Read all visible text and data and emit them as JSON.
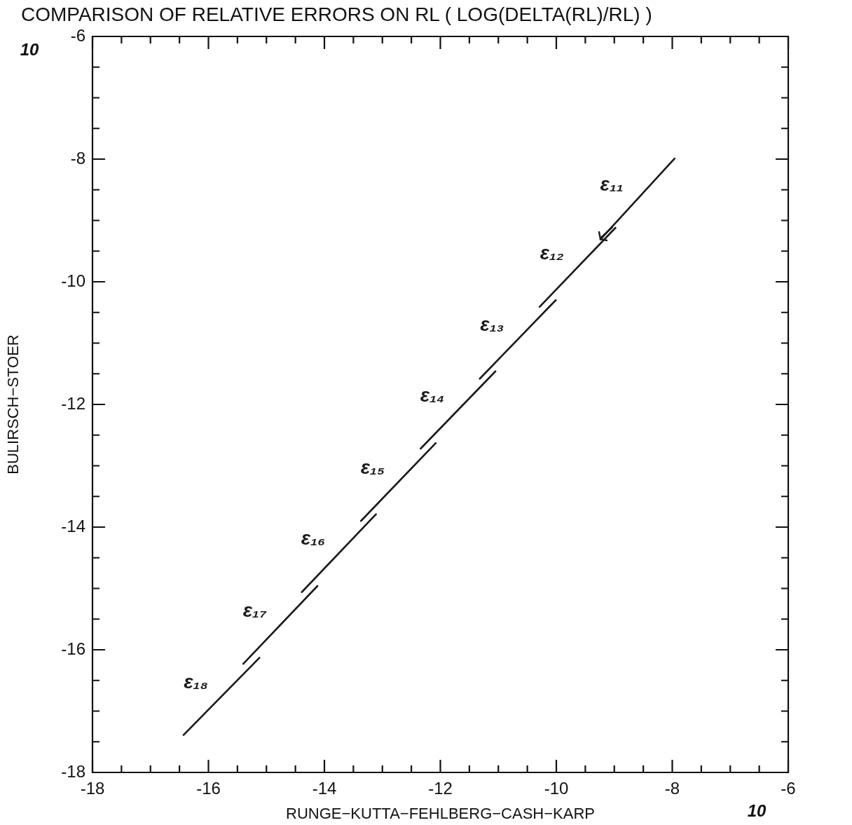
{
  "chart_data": {
    "type": "line",
    "title": "COMPARISON OF RELATIVE ERRORS ON RL ( LOG(DELTA(RL)/RL) )",
    "xlabel": "RUNGE−KUTTA−FEHLBERG−CASH−KARP",
    "ylabel": "BULIRSCH−STOER",
    "xlim": [
      -18,
      -6
    ],
    "ylim": [
      -18,
      -6
    ],
    "xticks": [
      -18,
      {
        "value": -17.5,
        "label": null
      },
      {
        "value": -17,
        "label": null
      },
      {
        "value": -16.5,
        "label": null
      },
      -16,
      {
        "value": -15.5,
        "label": null
      },
      {
        "value": -15,
        "label": null
      },
      {
        "value": -14.5,
        "label": null
      },
      -14,
      {
        "value": -13.5,
        "label": null
      },
      {
        "value": -13,
        "label": null
      },
      {
        "value": -12.5,
        "label": null
      },
      -12,
      {
        "value": -11.5,
        "label": null
      },
      {
        "value": -11,
        "label": null
      },
      {
        "value": -10.5,
        "label": null
      },
      -10,
      {
        "value": -9.5,
        "label": null
      },
      {
        "value": -9,
        "label": null
      },
      {
        "value": -8.5,
        "label": null
      },
      -8,
      {
        "value": -7.5,
        "label": null
      },
      {
        "value": -7,
        "label": null
      },
      {
        "value": -6.5,
        "label": null
      },
      -6
    ],
    "yticks": [
      -18,
      {
        "value": -17.5,
        "label": null
      },
      {
        "value": -17,
        "label": null
      },
      {
        "value": -16.5,
        "label": null
      },
      -16,
      {
        "value": -15.5,
        "label": null
      },
      {
        "value": -15,
        "label": null
      },
      {
        "value": -14.5,
        "label": null
      },
      -14,
      {
        "value": -13.5,
        "label": null
      },
      {
        "value": -13,
        "label": null
      },
      {
        "value": -12.5,
        "label": null
      },
      -12,
      {
        "value": -11.5,
        "label": null
      },
      {
        "value": -11,
        "label": null
      },
      {
        "value": -10.5,
        "label": null
      },
      -10,
      {
        "value": -9.5,
        "label": null
      },
      {
        "value": -9,
        "label": null
      },
      {
        "value": -8.5,
        "label": null
      },
      -8,
      {
        "value": -7.5,
        "label": null
      },
      {
        "value": -7,
        "label": null
      },
      {
        "value": -6.5,
        "label": null
      },
      -6
    ],
    "grid": false,
    "legend": false,
    "marker": "none",
    "line_style": "solid",
    "series": [
      {
        "name": "ε₁₁",
        "color": "#1a1a1a",
        "x": [
          -7.96,
          -9.24
        ],
        "values": [
          -7.99,
          -9.31
        ]
      },
      {
        "name": "ε₁₂",
        "color": "#1a1a1a",
        "x": [
          -8.98,
          -10.29
        ],
        "values": [
          -9.12,
          -10.41
        ]
      },
      {
        "name": "ε₁₃",
        "color": "#1a1a1a",
        "x": [
          -10.01,
          -11.32
        ],
        "values": [
          -10.3,
          -11.58
        ]
      },
      {
        "name": "ε₁₄",
        "color": "#1a1a1a",
        "x": [
          -11.05,
          -12.34
        ],
        "values": [
          -11.46,
          -12.72
        ]
      },
      {
        "name": "ε₁₅",
        "color": "#1a1a1a",
        "x": [
          -12.08,
          -13.37
        ],
        "values": [
          -12.63,
          -13.9
        ]
      },
      {
        "name": "ε₁₆",
        "color": "#1a1a1a",
        "x": [
          -13.11,
          -14.39
        ],
        "values": [
          -13.79,
          -15.06
        ]
      },
      {
        "name": "ε₁₇",
        "color": "#1a1a1a",
        "x": [
          -14.12,
          -15.4
        ],
        "values": [
          -14.96,
          -16.23
        ]
      },
      {
        "name": "ε₁₈",
        "color": "#1a1a1a",
        "x": [
          -15.12,
          -16.43
        ],
        "values": [
          -16.13,
          -17.39
        ]
      }
    ],
    "annotations": [
      "10",
      "10"
    ]
  }
}
